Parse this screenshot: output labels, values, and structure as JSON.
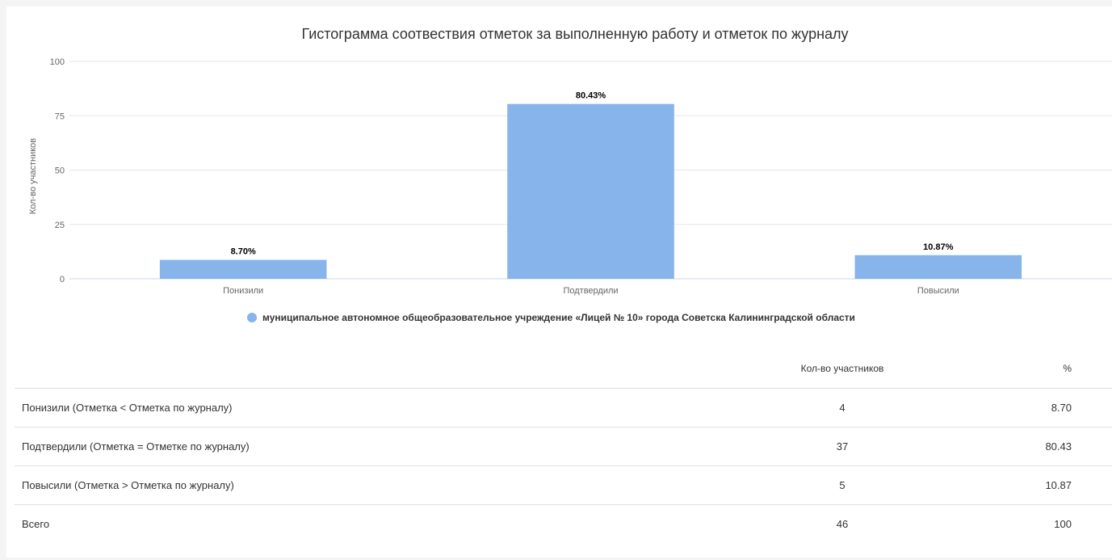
{
  "chart_data": {
    "type": "bar",
    "title": "Гистограмма соотвествия отметок за выполненную работу и отметок по журналу",
    "ylabel": "Кол-во участников",
    "xlabel": "",
    "ylim": [
      0,
      100
    ],
    "yticks": [
      0,
      25,
      50,
      75,
      100
    ],
    "categories": [
      "Понизили",
      "Подтвердили",
      "Повысили"
    ],
    "series": [
      {
        "name": "муниципальное автономное общеобразовательное учреждение «Лицей № 10» города Советска Калининградской области",
        "values": [
          8.7,
          80.43,
          10.87
        ],
        "labels": [
          "8.70%",
          "80.43%",
          "10.87%"
        ],
        "color": "#86b4eb"
      }
    ],
    "grid": true,
    "legend_position": "bottom-center"
  },
  "table": {
    "headers": {
      "label": "",
      "count": "Кол-во участников",
      "pct": "%"
    },
    "rows": [
      {
        "label": "Понизили (Отметка < Отметка по журналу)",
        "count": "4",
        "pct": "8.70"
      },
      {
        "label": "Подтвердили (Отметка = Отметке по журналу)",
        "count": "37",
        "pct": "80.43"
      },
      {
        "label": "Повысили (Отметка > Отметка по журналу)",
        "count": "5",
        "pct": "10.87"
      },
      {
        "label": "Всего",
        "count": "46",
        "pct": "100"
      }
    ]
  }
}
